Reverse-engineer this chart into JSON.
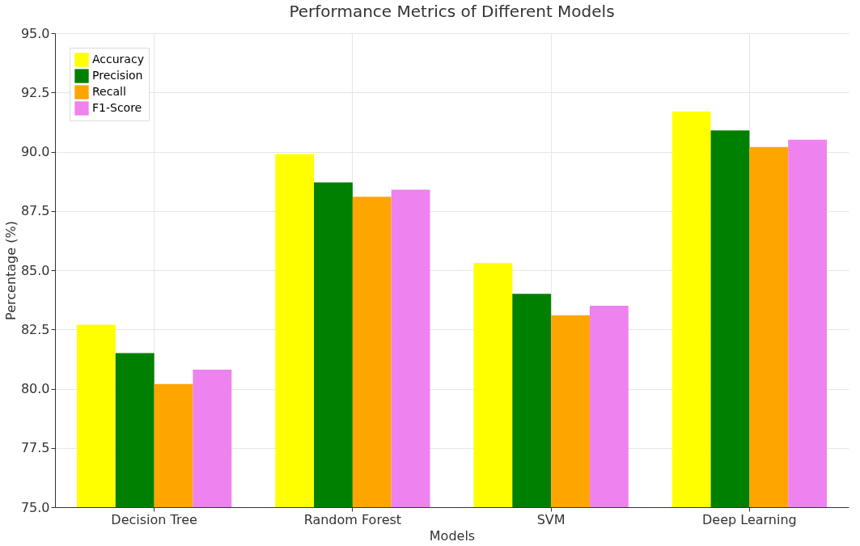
{
  "chart_data": {
    "type": "bar",
    "title": "Performance Metrics of Different Models",
    "xlabel": "Models",
    "ylabel": "Percentage (%)",
    "categories": [
      "Decision Tree",
      "Random Forest",
      "SVM",
      "Deep Learning"
    ],
    "series": [
      {
        "name": "Accuracy",
        "color": "#ffff00",
        "values": [
          82.7,
          89.9,
          85.3,
          91.7
        ]
      },
      {
        "name": "Precision",
        "color": "#008000",
        "values": [
          81.5,
          88.7,
          84.0,
          90.9
        ]
      },
      {
        "name": "Recall",
        "color": "#ffa500",
        "values": [
          80.2,
          88.1,
          83.1,
          90.2
        ]
      },
      {
        "name": "F1-Score",
        "color": "#ee82ee",
        "values": [
          80.8,
          88.4,
          83.5,
          90.5
        ]
      }
    ],
    "ylim": [
      75,
      95
    ],
    "yticks": [
      {
        "value": 75,
        "label": "75.0"
      },
      77.5,
      {
        "value": 80,
        "label": "80.0"
      },
      82.5,
      {
        "value": 85,
        "label": "85.0"
      },
      87.5,
      {
        "value": 90,
        "label": "90.0"
      },
      92.5,
      {
        "value": 95,
        "label": "95.0"
      }
    ],
    "grid": true,
    "legend": "top left"
  }
}
